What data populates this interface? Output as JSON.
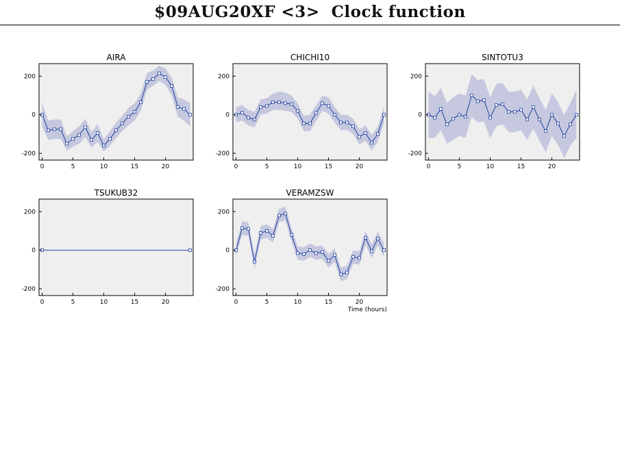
{
  "header": {
    "title": "$09AUG20XF <3>  Clock function"
  },
  "style": {
    "band_color": "#c5c8de",
    "line_color": "#1f3f9f",
    "panel_bg": "#efefef"
  },
  "chart_data": [
    {
      "type": "line",
      "title": "AIRA",
      "xlabel": "",
      "ylabel": "",
      "xlim": [
        -0.5,
        24.5
      ],
      "ylim": [
        -235,
        265
      ],
      "xticks": [
        0,
        5,
        10,
        15,
        20
      ],
      "yticks": [
        -200,
        0,
        200
      ],
      "x": [
        0,
        1,
        2,
        3,
        4,
        5,
        6,
        7,
        8,
        9,
        10,
        11,
        12,
        13,
        14,
        15,
        16,
        17,
        18,
        19,
        20,
        21,
        22,
        23,
        24
      ],
      "series": [
        {
          "values": [
            0,
            -80,
            -75,
            -75,
            -150,
            -125,
            -105,
            -65,
            -130,
            -95,
            -160,
            -125,
            -80,
            -45,
            -10,
            15,
            65,
            170,
            185,
            215,
            195,
            150,
            40,
            30,
            0
          ],
          "lower": [
            -60,
            -130,
            -125,
            -125,
            -185,
            -165,
            -150,
            -115,
            -170,
            -140,
            -190,
            -160,
            -120,
            -85,
            -55,
            -30,
            20,
            130,
            150,
            175,
            155,
            100,
            -10,
            -30,
            -60
          ],
          "upper": [
            60,
            -30,
            -25,
            -25,
            -110,
            -85,
            -60,
            -20,
            -90,
            -50,
            -125,
            -85,
            -40,
            -5,
            35,
            60,
            110,
            215,
            230,
            255,
            240,
            195,
            90,
            80,
            60
          ]
        }
      ]
    },
    {
      "type": "line",
      "title": "CHICHI10",
      "xlabel": "",
      "ylabel": "",
      "xlim": [
        -0.5,
        24.5
      ],
      "ylim": [
        -235,
        265
      ],
      "xticks": [
        0,
        5,
        10,
        15,
        20
      ],
      "yticks": [
        -200,
        0,
        200
      ],
      "x": [
        0,
        1,
        2,
        3,
        4,
        5,
        6,
        7,
        8,
        9,
        10,
        11,
        12,
        13,
        14,
        15,
        16,
        17,
        18,
        19,
        20,
        21,
        22,
        23,
        24
      ],
      "series": [
        {
          "values": [
            0,
            10,
            -15,
            -25,
            40,
            45,
            65,
            65,
            60,
            55,
            20,
            -45,
            -45,
            10,
            60,
            45,
            0,
            -40,
            -40,
            -60,
            -115,
            -95,
            -145,
            -100,
            0
          ],
          "lower": [
            -40,
            -30,
            -55,
            -65,
            0,
            5,
            25,
            25,
            20,
            15,
            -20,
            -85,
            -85,
            -30,
            20,
            5,
            -40,
            -80,
            -80,
            -100,
            -155,
            -135,
            -185,
            -140,
            -40
          ],
          "upper": [
            40,
            50,
            25,
            15,
            80,
            85,
            110,
            120,
            115,
            100,
            60,
            -5,
            0,
            50,
            100,
            90,
            40,
            0,
            0,
            -20,
            -75,
            -55,
            -105,
            -60,
            40
          ]
        }
      ]
    },
    {
      "type": "line",
      "title": "SINTOTU3",
      "xlabel": "",
      "ylabel": "",
      "xlim": [
        -0.5,
        24.5
      ],
      "ylim": [
        -235,
        265
      ],
      "xticks": [
        0,
        5,
        10,
        15,
        20
      ],
      "yticks": [
        -200,
        0,
        200
      ],
      "x": [
        0,
        1,
        2,
        3,
        4,
        5,
        6,
        7,
        8,
        9,
        10,
        11,
        12,
        13,
        14,
        15,
        16,
        17,
        18,
        19,
        20,
        21,
        22,
        23,
        24
      ],
      "series": [
        {
          "values": [
            0,
            -15,
            30,
            -50,
            -20,
            0,
            -10,
            100,
            70,
            75,
            -15,
            50,
            55,
            15,
            15,
            25,
            -25,
            40,
            -25,
            -85,
            0,
            -45,
            -110,
            -50,
            0
          ],
          "lower": [
            -120,
            -120,
            -80,
            -150,
            -130,
            -110,
            -120,
            -10,
            -40,
            -35,
            -120,
            -60,
            -50,
            -90,
            -90,
            -80,
            -130,
            -70,
            -135,
            -195,
            -110,
            -155,
            -225,
            -160,
            -120
          ],
          "upper": [
            120,
            95,
            140,
            60,
            90,
            110,
            100,
            210,
            180,
            185,
            90,
            160,
            165,
            120,
            120,
            130,
            80,
            150,
            85,
            25,
            110,
            65,
            0,
            60,
            130
          ]
        }
      ]
    },
    {
      "type": "line",
      "title": "TSUKUB32",
      "xlabel": "",
      "ylabel": "",
      "xlim": [
        -0.5,
        24.5
      ],
      "ylim": [
        -235,
        265
      ],
      "xticks": [
        0,
        5,
        10,
        15,
        20
      ],
      "yticks": [
        -200,
        0,
        200
      ],
      "x": [
        0,
        24
      ],
      "series": [
        {
          "values": [
            0,
            0
          ],
          "lower": [
            0,
            0
          ],
          "upper": [
            0,
            0
          ]
        }
      ]
    },
    {
      "type": "line",
      "title": "VERAMZSW",
      "xlabel": "Time (hours)",
      "ylabel": "",
      "xlim": [
        -0.5,
        24.5
      ],
      "ylim": [
        -235,
        265
      ],
      "xticks": [
        0,
        5,
        10,
        15,
        20
      ],
      "yticks": [
        -200,
        0,
        200
      ],
      "x": [
        0,
        1,
        2,
        3,
        4,
        5,
        6,
        7,
        8,
        9,
        10,
        11,
        12,
        13,
        14,
        15,
        16,
        17,
        18,
        19,
        20,
        21,
        22,
        23,
        24
      ],
      "series": [
        {
          "values": [
            0,
            115,
            110,
            -60,
            90,
            100,
            75,
            180,
            190,
            80,
            -15,
            -20,
            0,
            -15,
            -10,
            -55,
            -25,
            -125,
            -115,
            -35,
            -40,
            65,
            -5,
            60,
            0
          ],
          "lower": [
            -30,
            80,
            75,
            -95,
            55,
            65,
            40,
            145,
            155,
            45,
            -50,
            -55,
            -35,
            -50,
            -45,
            -90,
            -60,
            -160,
            -150,
            -70,
            -75,
            30,
            -40,
            25,
            -35
          ],
          "upper": [
            30,
            150,
            145,
            -25,
            125,
            135,
            110,
            215,
            225,
            115,
            20,
            15,
            35,
            20,
            25,
            -20,
            10,
            -90,
            -80,
            0,
            -5,
            100,
            30,
            95,
            35
          ]
        }
      ]
    }
  ]
}
